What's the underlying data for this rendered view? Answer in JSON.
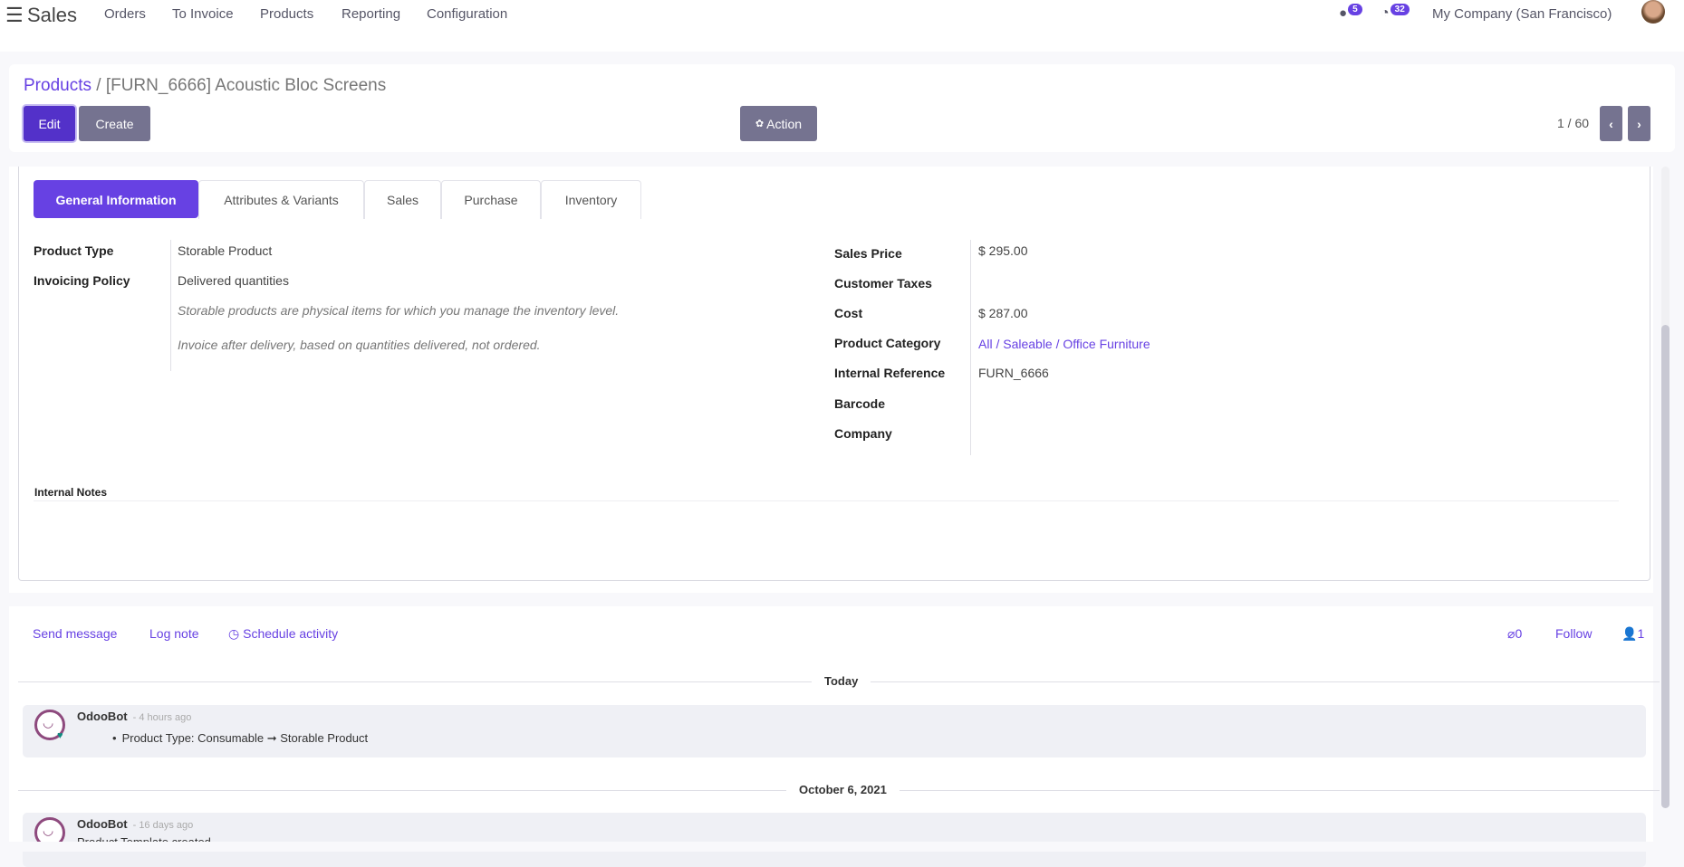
{
  "navbar": {
    "app_name": "Sales",
    "menu": [
      "Orders",
      "To Invoice",
      "Products",
      "Reporting",
      "Configuration"
    ],
    "messages_count": "5",
    "activities_count": "32",
    "company": "My Company (San Francisco)"
  },
  "control_panel": {
    "breadcrumb_parent": "Products",
    "breadcrumb_sep": "/",
    "breadcrumb_current": "[FURN_6666] Acoustic Bloc Screens",
    "edit_label": "Edit",
    "create_label": "Create",
    "action_label": "Action",
    "pager": "1 / 60"
  },
  "tabs": [
    "General Information",
    "Attributes & Variants",
    "Sales",
    "Purchase",
    "Inventory"
  ],
  "left_fields": {
    "product_type_label": "Product Type",
    "product_type": "Storable Product",
    "invoicing_policy_label": "Invoicing Policy",
    "invoicing_policy": "Delivered quantities",
    "help_type": "Storable products are physical items for which you manage the inventory level.",
    "help_invoice": "Invoice after delivery, based on quantities delivered, not ordered."
  },
  "right_fields": [
    {
      "label": "Sales Price",
      "value": "$ 295.00"
    },
    {
      "label": "Customer Taxes",
      "value": ""
    },
    {
      "label": "Cost",
      "value": "$ 287.00"
    },
    {
      "label": "Product Category",
      "value": "All / Saleable / Office Furniture"
    },
    {
      "label": "Internal Reference",
      "value": "FURN_6666"
    },
    {
      "label": "Barcode",
      "value": ""
    },
    {
      "label": "Company",
      "value": ""
    }
  ],
  "internal_notes_label": "Internal Notes",
  "chatter": {
    "send_message": "Send message",
    "log_note": "Log note",
    "schedule_activity": "Schedule activity",
    "attachments": "0",
    "follow": "Follow",
    "followers": "1",
    "groups": [
      {
        "date": "Today",
        "author": "OdooBot",
        "time": "- 4 hours ago",
        "body": "Product Type: Consumable ➞ Storable Product"
      },
      {
        "date": "October 6, 2021",
        "author": "OdooBot",
        "time": "- 16 days ago",
        "body": "Product Template created"
      }
    ]
  },
  "colors": {
    "accent": "#6741e3",
    "button_gray": "#757390"
  }
}
